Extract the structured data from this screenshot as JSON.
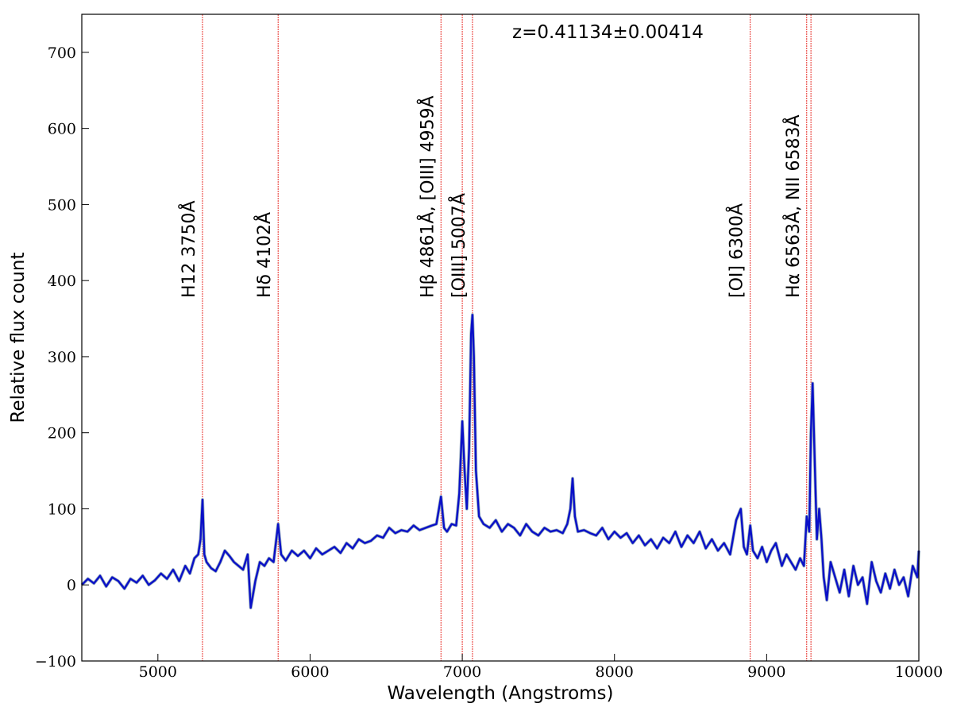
{
  "chart_data": {
    "type": "line",
    "title": "",
    "xlabel": "Wavelength (Angstroms)",
    "ylabel": "Relative flux count",
    "xlim": [
      4500,
      10000
    ],
    "ylim": [
      -100,
      750
    ],
    "xticks": [
      5000,
      6000,
      7000,
      8000,
      9000,
      10000
    ],
    "yticks": [
      -100,
      0,
      100,
      200,
      300,
      400,
      500,
      600,
      700
    ],
    "grid": false,
    "legend": "none",
    "annotation": "z=0.41134±0.00414",
    "colors": {
      "spectrum": "#0a10c8",
      "lines": "#e8302a",
      "smooth": "#9fb4c0"
    },
    "emission_lines": [
      {
        "x": 5293,
        "label": "H12 3750Å"
      },
      {
        "x": 5790,
        "label": "Hδ 4102Å"
      },
      {
        "x": 6860,
        "label": "Hβ 4861Å, [OIII] 4959Å"
      },
      {
        "x": 7000,
        "label": ""
      },
      {
        "x": 7067,
        "label": "[OIII] 5007Å"
      },
      {
        "x": 8892,
        "label": "[OI] 6300Å"
      },
      {
        "x": 9263,
        "label": "Hα 6563Å, NII 6583Å"
      },
      {
        "x": 9291,
        "label": ""
      }
    ],
    "series": [
      {
        "x": [
          4500,
          4540,
          4580,
          4620,
          4660,
          4700,
          4740,
          4780,
          4820,
          4860,
          4900,
          4940,
          4980,
          5020,
          5060,
          5100,
          5140,
          5180,
          5210,
          5240,
          5265,
          5280,
          5293,
          5305,
          5320,
          5350,
          5380,
          5410,
          5440,
          5470,
          5500,
          5530,
          5560,
          5590,
          5610,
          5640,
          5670,
          5700,
          5730,
          5760,
          5790,
          5810,
          5840,
          5880,
          5920,
          5960,
          6000,
          6040,
          6080,
          6120,
          6160,
          6200,
          6240,
          6280,
          6320,
          6360,
          6400,
          6440,
          6480,
          6520,
          6560,
          6600,
          6640,
          6680,
          6720,
          6760,
          6800,
          6830,
          6860,
          6880,
          6900,
          6930,
          6960,
          6980,
          7000,
          7015,
          7030,
          7045,
          7058,
          7067,
          7076,
          7090,
          7110,
          7140,
          7180,
          7220,
          7260,
          7300,
          7340,
          7380,
          7420,
          7460,
          7500,
          7540,
          7580,
          7620,
          7660,
          7690,
          7710,
          7725,
          7740,
          7760,
          7800,
          7840,
          7880,
          7920,
          7960,
          8000,
          8040,
          8080,
          8120,
          8160,
          8200,
          8240,
          8280,
          8320,
          8360,
          8400,
          8440,
          8480,
          8520,
          8560,
          8600,
          8640,
          8680,
          8720,
          8760,
          8800,
          8830,
          8850,
          8870,
          8892,
          8910,
          8940,
          8970,
          9000,
          9030,
          9060,
          9100,
          9130,
          9160,
          9190,
          9220,
          9245,
          9263,
          9280,
          9291,
          9302,
          9315,
          9330,
          9345,
          9360,
          9375,
          9395,
          9420,
          9450,
          9480,
          9510,
          9540,
          9570,
          9600,
          9630,
          9660,
          9690,
          9720,
          9750,
          9780,
          9810,
          9840,
          9870,
          9900,
          9930,
          9960,
          9990,
          10000
        ],
        "y": [
          0,
          8,
          2,
          12,
          -2,
          10,
          5,
          -5,
          8,
          3,
          12,
          0,
          6,
          15,
          8,
          20,
          5,
          25,
          15,
          35,
          40,
          60,
          112,
          40,
          30,
          22,
          18,
          30,
          45,
          38,
          30,
          25,
          20,
          40,
          -30,
          5,
          30,
          25,
          35,
          30,
          80,
          40,
          32,
          45,
          38,
          45,
          35,
          48,
          40,
          45,
          50,
          42,
          55,
          48,
          60,
          55,
          58,
          65,
          62,
          75,
          68,
          72,
          70,
          78,
          72,
          75,
          78,
          80,
          116,
          75,
          70,
          80,
          78,
          120,
          215,
          150,
          100,
          180,
          330,
          355,
          300,
          150,
          90,
          80,
          75,
          85,
          70,
          80,
          75,
          65,
          80,
          70,
          65,
          75,
          70,
          72,
          68,
          80,
          100,
          140,
          90,
          70,
          72,
          68,
          65,
          75,
          60,
          70,
          62,
          68,
          55,
          65,
          52,
          60,
          48,
          62,
          55,
          70,
          50,
          65,
          55,
          70,
          48,
          60,
          45,
          55,
          40,
          85,
          100,
          50,
          40,
          78,
          45,
          35,
          50,
          30,
          45,
          55,
          25,
          40,
          30,
          20,
          35,
          25,
          90,
          70,
          200,
          265,
          170,
          60,
          100,
          60,
          10,
          -20,
          30,
          10,
          -10,
          20,
          -15,
          25,
          0,
          10,
          -25,
          30,
          5,
          -10,
          15,
          -5,
          20,
          0,
          10,
          -15,
          25,
          10,
          45
        ]
      }
    ]
  }
}
